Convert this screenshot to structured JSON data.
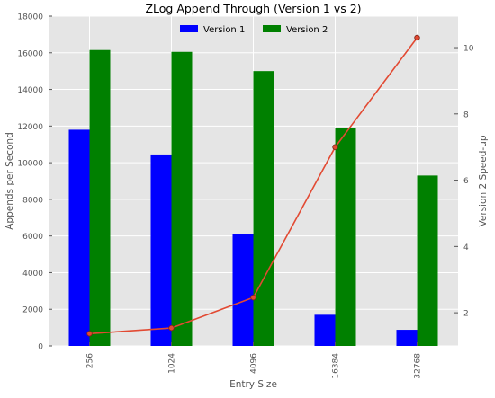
{
  "chart_data": {
    "type": "bar",
    "title": "ZLog Append Through (Version 1 vs 2)",
    "xlabel": "Entry Size",
    "ylabel": "Appends per Second",
    "y2label": "Version 2 Speed-up",
    "categories": [
      "256",
      "1024",
      "4096",
      "16384",
      "32768"
    ],
    "series": [
      {
        "name": "Version 1",
        "color": "#0000ff",
        "values": [
          11800,
          10450,
          6100,
          1700,
          880
        ]
      },
      {
        "name": "Version 2",
        "color": "#008000",
        "values": [
          16150,
          16050,
          15000,
          11900,
          9300
        ]
      }
    ],
    "line": {
      "axis": "right",
      "color": "#e24a33",
      "values": [
        1.37,
        1.54,
        2.46,
        7.0,
        10.3
      ]
    },
    "ylim": [
      0,
      18000
    ],
    "yticks": [
      0,
      2000,
      4000,
      6000,
      8000,
      10000,
      12000,
      14000,
      16000,
      18000
    ],
    "y2lim": [
      1.0,
      10.95
    ],
    "y2ticks": [
      2,
      4,
      6,
      8,
      10
    ],
    "grid": true,
    "legend": "top-center",
    "plot_background": "#e5e5e5"
  }
}
